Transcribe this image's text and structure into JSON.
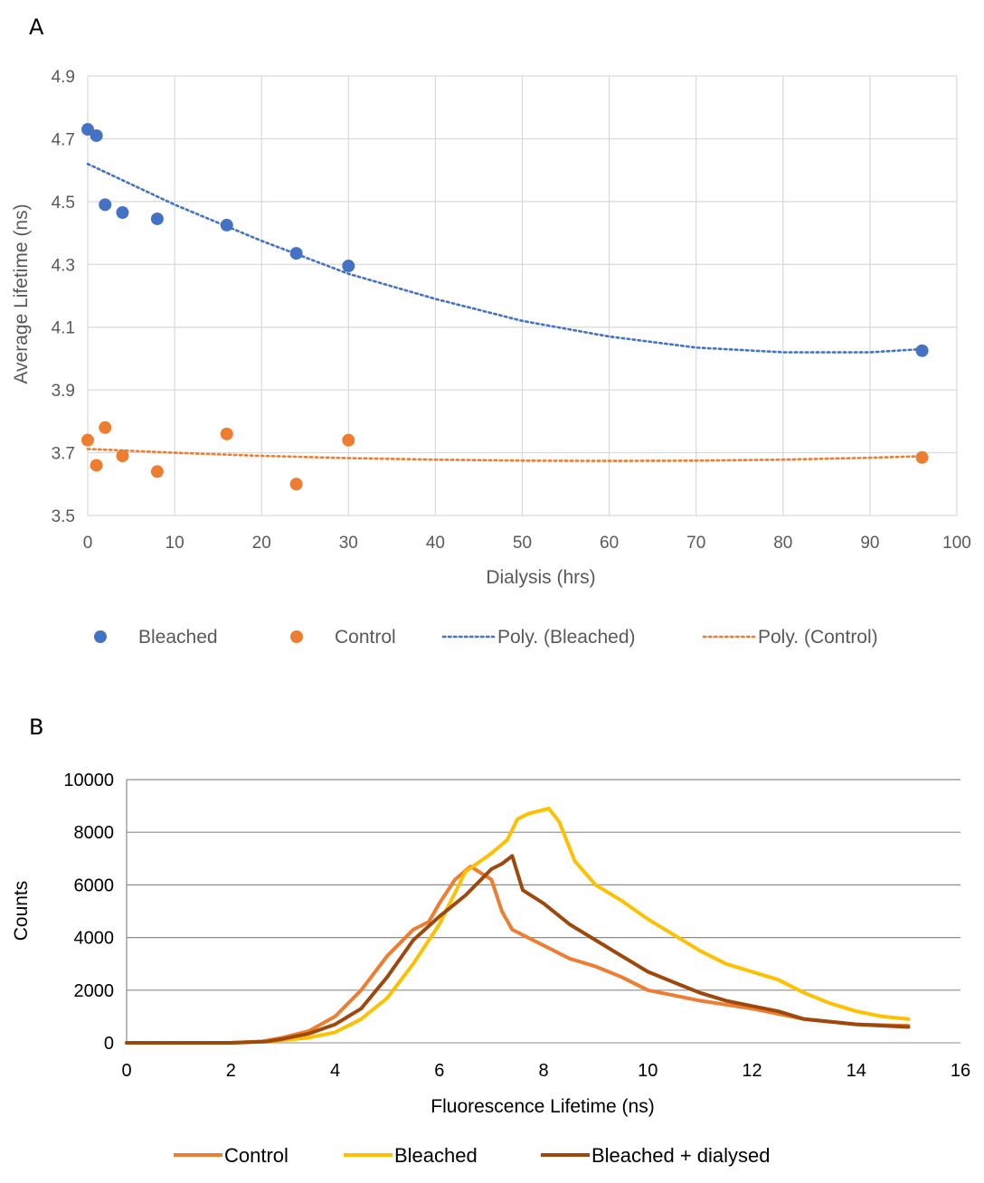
{
  "panels": {
    "a": "A",
    "b": "B"
  },
  "chart_data": [
    {
      "type": "scatter",
      "xlabel": "Dialysis (hrs)",
      "ylabel": "Average Lifetime (ns)",
      "xlim": [
        0,
        100
      ],
      "ylim": [
        3.5,
        4.9
      ],
      "xticks": [
        "0",
        "10",
        "20",
        "30",
        "40",
        "50",
        "60",
        "70",
        "80",
        "90",
        "100"
      ],
      "yticks": [
        "4.9",
        "4.7",
        "4.5",
        "4.3",
        "4.1",
        "3.9",
        "3.7",
        "3.5"
      ],
      "grid": "both",
      "legend_position": "bottom",
      "series": [
        {
          "name": "Bleached",
          "color": "#4472c4",
          "x": [
            0,
            1,
            2,
            4,
            8,
            16,
            24,
            30,
            96
          ],
          "y": [
            4.73,
            4.71,
            4.49,
            4.465,
            4.445,
            4.425,
            4.335,
            4.295,
            4.025
          ]
        },
        {
          "name": "Control",
          "color": "#ed7d31",
          "x": [
            0,
            1,
            2,
            4,
            8,
            16,
            24,
            30,
            96
          ],
          "y": [
            3.74,
            3.66,
            3.78,
            3.69,
            3.64,
            3.76,
            3.6,
            3.74,
            3.685
          ]
        }
      ],
      "trendlines": [
        {
          "name": "Poly. (Bleached)",
          "color": "#4472c4",
          "order": 2,
          "x": [
            0,
            10,
            20,
            30,
            40,
            50,
            60,
            70,
            80,
            90,
            96
          ],
          "y": [
            4.62,
            4.49,
            4.375,
            4.27,
            4.19,
            4.12,
            4.07,
            4.035,
            4.02,
            4.02,
            4.03
          ]
        },
        {
          "name": "Poly. (Control)",
          "color": "#ed7d31",
          "order": 2,
          "x": [
            0,
            10,
            20,
            30,
            40,
            50,
            60,
            70,
            80,
            90,
            96
          ],
          "y": [
            3.712,
            3.7,
            3.69,
            3.683,
            3.678,
            3.675,
            3.674,
            3.675,
            3.678,
            3.684,
            3.689
          ]
        }
      ]
    },
    {
      "type": "line",
      "xlabel": "Fluorescence Lifetime (ns)",
      "ylabel": "Counts",
      "xlim": [
        0,
        16
      ],
      "ylim": [
        0,
        10000
      ],
      "xticks": [
        "0",
        "2",
        "4",
        "6",
        "8",
        "10",
        "12",
        "14",
        "16"
      ],
      "yticks": [
        "10000",
        "8000",
        "6000",
        "4000",
        "2000",
        "0"
      ],
      "grid": "horizontal",
      "legend_position": "bottom",
      "series": [
        {
          "name": "Control",
          "color": "#ed7d31",
          "x": [
            0,
            2,
            2.6,
            3,
            3.5,
            4,
            4.5,
            5,
            5.5,
            5.8,
            6,
            6.3,
            6.6,
            7,
            7.2,
            7.4,
            7.7,
            8,
            8.5,
            9,
            9.5,
            10,
            10.5,
            11,
            12,
            13,
            14,
            15
          ],
          "y": [
            0,
            0,
            50,
            200,
            450,
            1000,
            2000,
            3300,
            4300,
            4600,
            5300,
            6200,
            6700,
            6200,
            5000,
            4300,
            4000,
            3700,
            3200,
            2900,
            2500,
            2000,
            1800,
            1600,
            1300,
            900,
            700,
            650
          ]
        },
        {
          "name": "Bleached",
          "color": "#ffc000",
          "x": [
            0,
            2,
            2.7,
            3,
            3.5,
            4,
            4.5,
            5,
            5.5,
            6,
            6.5,
            7,
            7.3,
            7.5,
            7.7,
            7.9,
            8.1,
            8.3,
            8.6,
            9,
            9.5,
            10,
            10.5,
            11,
            11.5,
            12,
            12.5,
            13,
            13.5,
            14,
            14.5,
            15
          ],
          "y": [
            0,
            0,
            50,
            100,
            200,
            400,
            900,
            1700,
            3000,
            4500,
            6500,
            7200,
            7700,
            8500,
            8700,
            8800,
            8900,
            8400,
            6900,
            6000,
            5400,
            4700,
            4100,
            3500,
            3000,
            2700,
            2400,
            1900,
            1500,
            1200,
            1000,
            900
          ]
        },
        {
          "name": "Bleached + dialysed",
          "color": "#9e480e",
          "x": [
            0,
            2,
            2.7,
            3,
            3.5,
            4,
            4.5,
            5,
            5.5,
            6,
            6.5,
            7,
            7.2,
            7.4,
            7.6,
            8,
            8.5,
            9,
            9.5,
            10,
            10.5,
            11,
            11.5,
            12,
            12.5,
            13,
            14,
            15
          ],
          "y": [
            0,
            0,
            50,
            150,
            350,
            700,
            1300,
            2500,
            3900,
            4800,
            5600,
            6600,
            6800,
            7100,
            5800,
            5300,
            4500,
            3900,
            3300,
            2700,
            2300,
            1900,
            1600,
            1400,
            1200,
            900,
            700,
            600
          ]
        }
      ]
    }
  ]
}
